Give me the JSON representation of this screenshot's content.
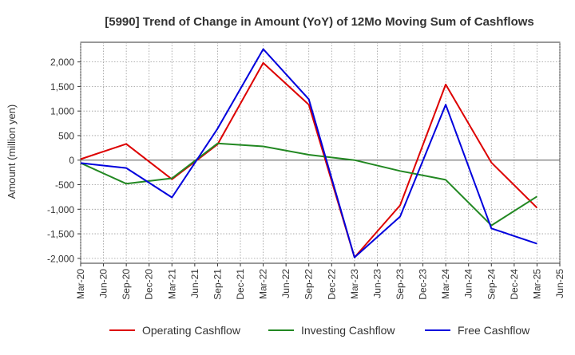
{
  "chart_data": {
    "type": "line",
    "title": "[5990]  Trend of Change in Amount (YoY) of 12Mo Moving Sum of Cashflows",
    "ylabel": "Amount (million yen)",
    "xlabel": "",
    "ylim": [
      -2100,
      2400
    ],
    "yticks": [
      -2000,
      -1500,
      -1000,
      -500,
      0,
      500,
      1000,
      1500,
      2000
    ],
    "ytick_labels": [
      "-2,000",
      "-1,500",
      "-1,000",
      "-500",
      "0",
      "500",
      "1,000",
      "1,500",
      "2,000"
    ],
    "categories": [
      "Mar-20",
      "Jun-20",
      "Sep-20",
      "Dec-20",
      "Mar-21",
      "Jun-21",
      "Sep-21",
      "Dec-21",
      "Mar-22",
      "Jun-22",
      "Sep-22",
      "Dec-22",
      "Mar-23",
      "Jun-23",
      "Sep-23",
      "Dec-23",
      "Mar-24",
      "Jun-24",
      "Sep-24",
      "Dec-24",
      "Mar-25",
      "Jun-25"
    ],
    "grid": true,
    "legend_position": "bottom",
    "series": [
      {
        "name": "Operating Cashflow",
        "color": "#dd0000",
        "points": [
          [
            0,
            20
          ],
          [
            2,
            330
          ],
          [
            4,
            -390
          ],
          [
            6,
            320
          ],
          [
            8,
            1980
          ],
          [
            10,
            1130
          ],
          [
            12,
            -1980
          ],
          [
            14,
            -920
          ],
          [
            16,
            1540
          ],
          [
            18,
            -50
          ],
          [
            20,
            -970
          ]
        ]
      },
      {
        "name": "Investing Cashflow",
        "color": "#228822",
        "points": [
          [
            0,
            -60
          ],
          [
            2,
            -480
          ],
          [
            4,
            -370
          ],
          [
            6,
            340
          ],
          [
            8,
            280
          ],
          [
            10,
            110
          ],
          [
            12,
            0
          ],
          [
            14,
            -220
          ],
          [
            16,
            -400
          ],
          [
            18,
            -1330
          ],
          [
            20,
            -740
          ]
        ]
      },
      {
        "name": "Free Cashflow",
        "color": "#0000dd",
        "points": [
          [
            0,
            -60
          ],
          [
            2,
            -160
          ],
          [
            4,
            -760
          ],
          [
            6,
            640
          ],
          [
            8,
            2260
          ],
          [
            10,
            1240
          ],
          [
            12,
            -1980
          ],
          [
            14,
            -1150
          ],
          [
            16,
            1130
          ],
          [
            18,
            -1390
          ],
          [
            20,
            -1700
          ]
        ]
      }
    ]
  }
}
